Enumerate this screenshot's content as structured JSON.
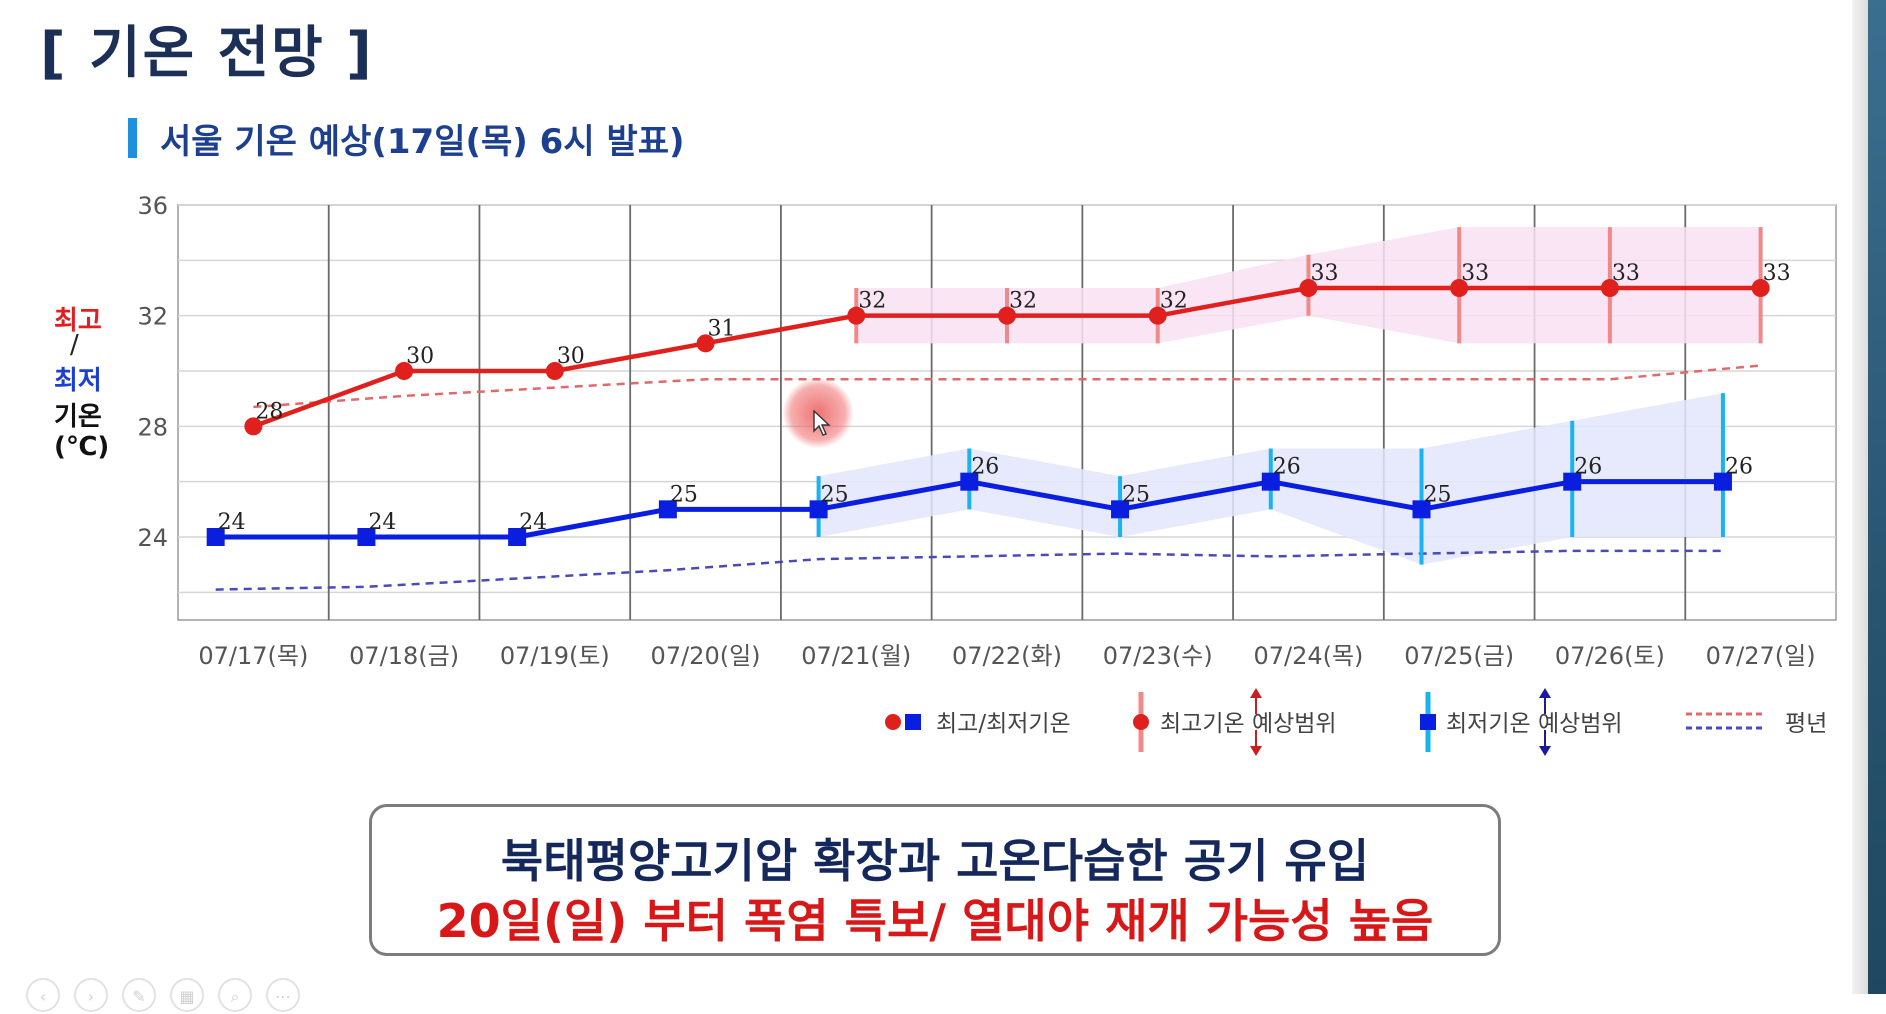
{
  "header": {
    "title": "[ 기온 전망 ]",
    "subtitle": "서울 기온 예상(17일(목) 6시 발표)"
  },
  "y_axis_label": {
    "max": "최고",
    "slash": "/",
    "min": "최저",
    "temp": "기온",
    "unit": "(℃)"
  },
  "colors": {
    "max_line": "#e0201c",
    "min_line": "#0a1ee0",
    "max_range_bar": "#f08a8a",
    "min_range_bar": "#18b4f0",
    "max_band": "#f9e1f3",
    "min_band": "#e3e6fb",
    "max_normal": "#e06a6a",
    "min_normal": "#4a4ab8"
  },
  "chart_data": {
    "type": "line",
    "categories": [
      "07/17(목)",
      "07/18(금)",
      "07/19(토)",
      "07/20(일)",
      "07/21(월)",
      "07/22(화)",
      "07/23(수)",
      "07/24(목)",
      "07/25(금)",
      "07/26(토)",
      "07/27(일)"
    ],
    "ylim": [
      21,
      36
    ],
    "yticks": [
      24,
      28,
      32,
      36
    ],
    "grid": true,
    "series": [
      {
        "name": "최고기온",
        "x": [
          0.5,
          1.5,
          2.5,
          3.5,
          4.5,
          5.5,
          6.5,
          7.5,
          8.5,
          9.5,
          10.5
        ],
        "values": [
          28,
          30,
          30,
          31,
          32,
          32,
          32,
          33,
          33,
          33,
          33
        ],
        "labels": [
          "28",
          "30",
          "30",
          "31",
          "32",
          "32",
          "32",
          "33",
          "33",
          "33",
          "33"
        ]
      },
      {
        "name": "최저기온",
        "x": [
          0.25,
          1.25,
          2.25,
          3.25,
          4.25,
          5.25,
          6.25,
          7.25,
          8.25,
          9.25,
          10.25
        ],
        "values": [
          24,
          24,
          24,
          25,
          25,
          26,
          25,
          26,
          25,
          26,
          26
        ],
        "labels": [
          "24",
          "24",
          "24",
          "25",
          "25",
          "26",
          "25",
          "26",
          "25",
          "26",
          "26"
        ]
      },
      {
        "name": "최고기온 예상범위",
        "x": [
          4.5,
          5.5,
          6.5,
          7.5,
          8.5,
          9.5,
          10.5
        ],
        "low": [
          31,
          31,
          31,
          32,
          31,
          31,
          31
        ],
        "high": [
          33,
          33,
          33,
          34.2,
          35.2,
          35.2,
          35.2
        ]
      },
      {
        "name": "최저기온 예상범위",
        "x": [
          4.25,
          5.25,
          6.25,
          7.25,
          8.25,
          9.25,
          10.25
        ],
        "low": [
          24,
          25,
          24,
          25,
          23,
          24,
          24
        ],
        "high": [
          26.2,
          27.2,
          26.2,
          27.2,
          27.2,
          28.2,
          29.2
        ]
      },
      {
        "name": "평년 (최고)",
        "x": [
          0.5,
          1.5,
          2.5,
          3.5,
          4.5,
          5.5,
          6.5,
          7.5,
          8.5,
          9.5,
          10.5
        ],
        "values": [
          28.7,
          29.1,
          29.4,
          29.7,
          29.7,
          29.7,
          29.7,
          29.7,
          29.7,
          29.7,
          30.2
        ]
      },
      {
        "name": "평년 (최저)",
        "x": [
          0.25,
          1.25,
          2.25,
          3.25,
          4.25,
          5.25,
          6.25,
          7.25,
          8.25,
          9.25,
          10.25
        ],
        "values": [
          22.1,
          22.2,
          22.5,
          22.8,
          23.2,
          23.3,
          23.4,
          23.3,
          23.4,
          23.5,
          23.5
        ]
      }
    ],
    "legend": {
      "position": "bottom-right",
      "items": [
        "최고/최저기온",
        "최고기온 예상범위",
        "최저기온 예상범위",
        "평년"
      ]
    }
  },
  "message": {
    "line1": "북태평양고기압 확장과 고온다습한 공기 유입",
    "line2": "20일(일) 부터 폭염 특보/ 열대야 재개 가능성 높음"
  }
}
